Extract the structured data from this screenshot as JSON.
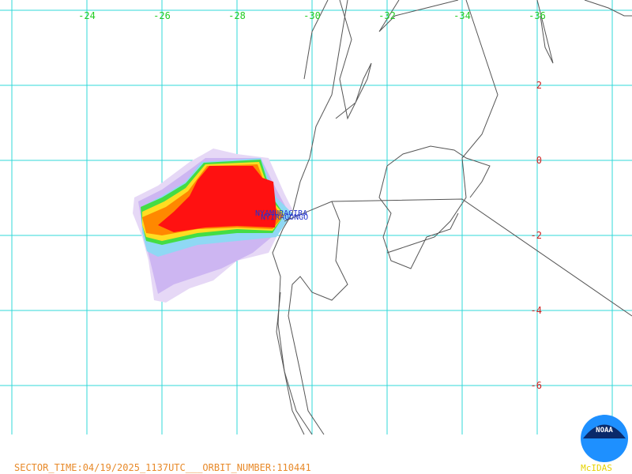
{
  "map": {
    "longitude_labels": [
      "-24",
      "-26",
      "-28",
      "-30",
      "-32",
      "-34",
      "-36"
    ],
    "latitude_labels": [
      "2",
      "0",
      "-2",
      "-4",
      "-6"
    ],
    "volcanoes": [
      "NYAMURAGIRA",
      "NYIRAGONGO"
    ],
    "footer": "SECTOR_TIME:04/19/2025_1137UTC___ORBIT_NUMBER:110441",
    "logo": "NOAA",
    "software": "McIDAS"
  }
}
